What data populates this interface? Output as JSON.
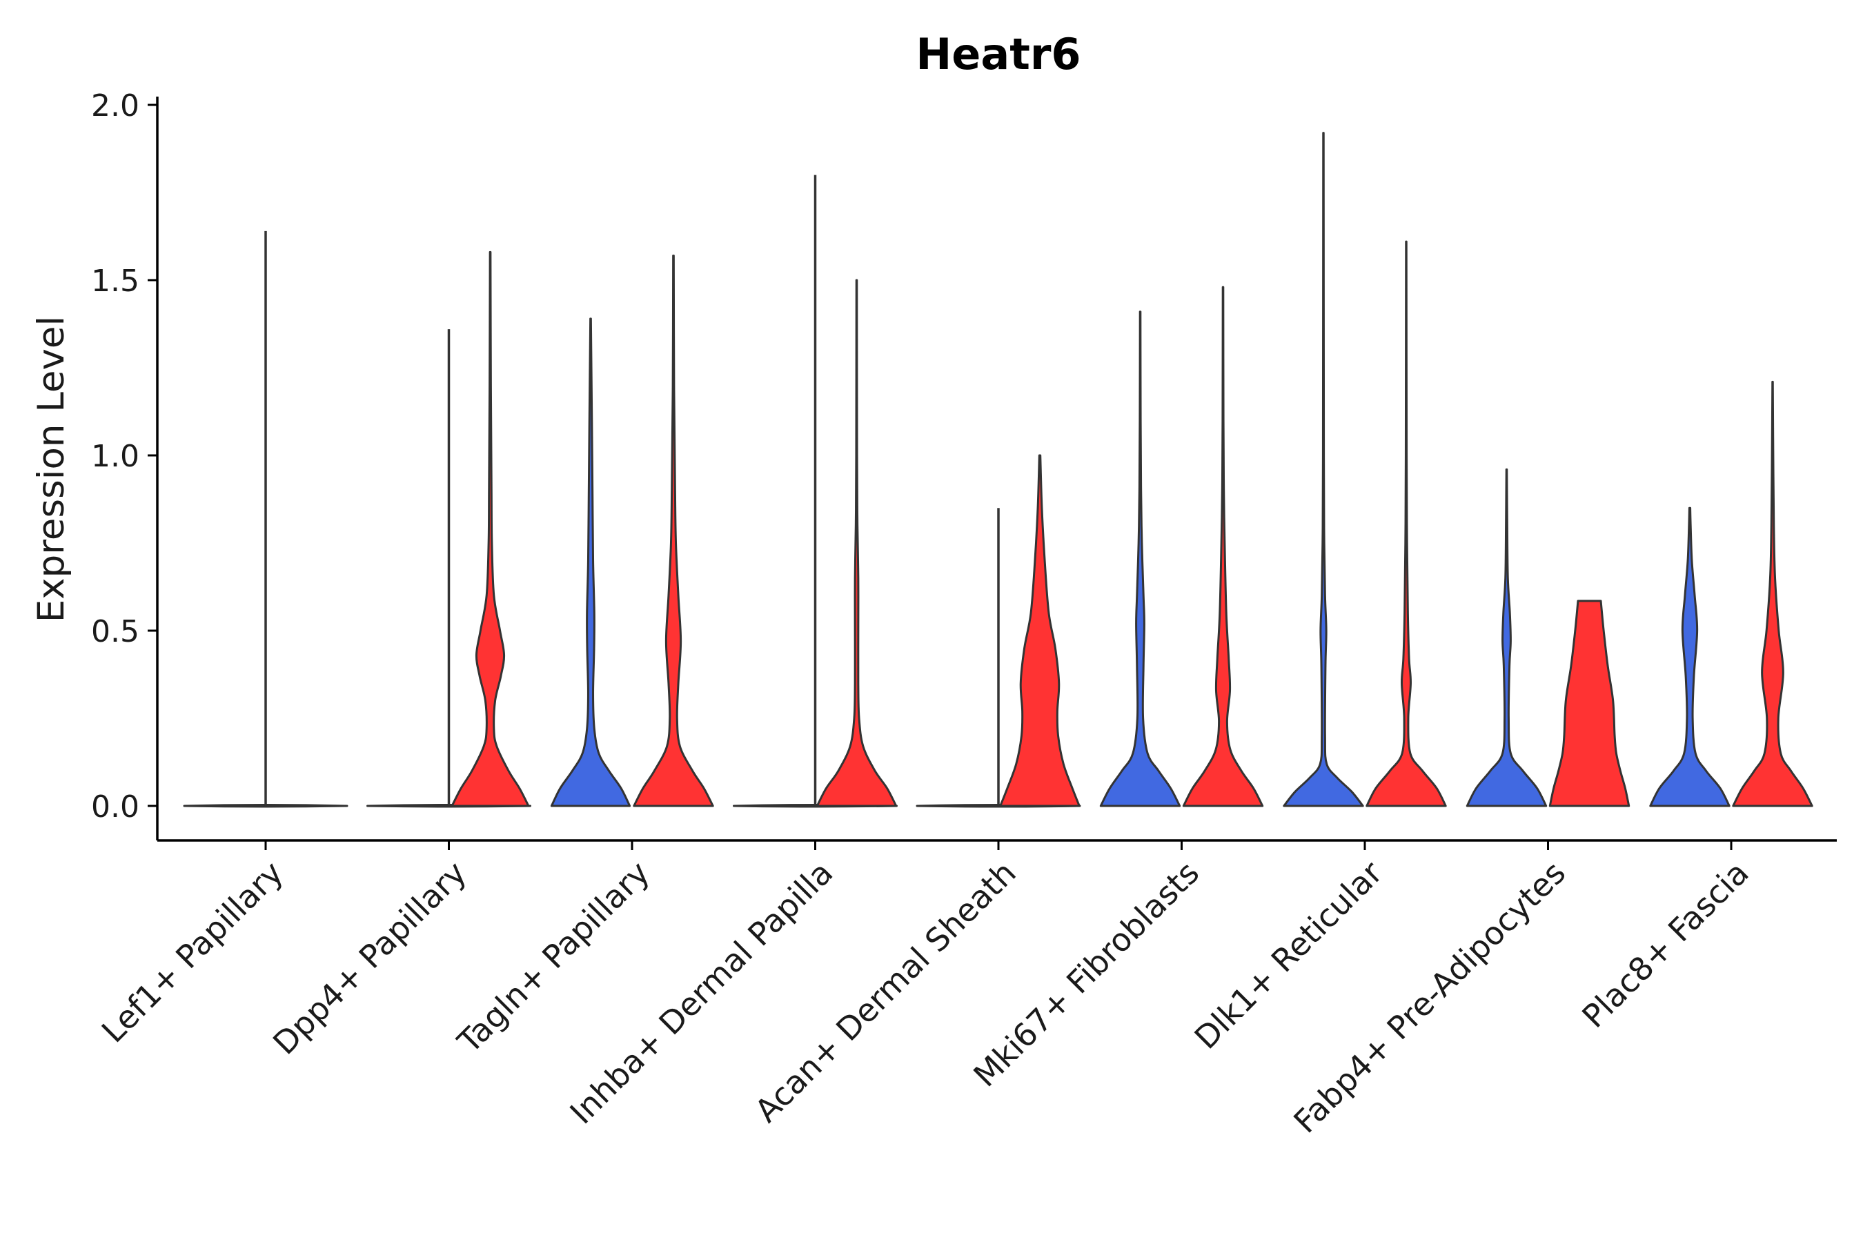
{
  "chart_data": {
    "type": "violin",
    "title": "Heatr6",
    "xlabel": "",
    "ylabel": "Expression Level",
    "ylim": [
      -0.1,
      2.0
    ],
    "yticks": [
      {
        "value": 0.0,
        "label": "0.0"
      },
      {
        "value": 0.5,
        "label": "0.5"
      },
      {
        "value": 1.0,
        "label": "1.0"
      },
      {
        "value": 1.5,
        "label": "1.5"
      },
      {
        "value": 2.0,
        "label": "2.0"
      }
    ],
    "categories": [
      "Lef1+ Papillary",
      "Dpp4+ Papillary",
      "Tagln+ Papillary",
      "Inhba+ Dermal Papilla",
      "Acan+ Dermal Sheath",
      "Mki67+ Fibroblasts",
      "Dlk1+ Reticular",
      "Fabp4+ Pre-Adipocytes",
      "Plac8+ Fascia"
    ],
    "groups": [
      {
        "name": "group-1",
        "color": "#4169E1"
      },
      {
        "name": "group-2",
        "color": "#FF3333"
      }
    ],
    "violins": [
      {
        "category": 0,
        "group": 0,
        "max": 1.64,
        "shape": "flat"
      },
      {
        "category": 1,
        "group": 0,
        "max": 1.36,
        "shape": "flat"
      },
      {
        "category": 1,
        "group": 1,
        "max": 1.58,
        "shape": [
          [
            0,
            0.94
          ],
          [
            0.05,
            0.72
          ],
          [
            0.1,
            0.45
          ],
          [
            0.17,
            0.16
          ],
          [
            0.22,
            0.09
          ],
          [
            0.3,
            0.12
          ],
          [
            0.37,
            0.26
          ],
          [
            0.43,
            0.34
          ],
          [
            0.5,
            0.24
          ],
          [
            0.6,
            0.09
          ],
          [
            0.75,
            0.04
          ],
          [
            0.9,
            0.03
          ],
          [
            1.2,
            0.015
          ],
          [
            1.58,
            0.006
          ]
        ]
      },
      {
        "category": 2,
        "group": 0,
        "max": 1.39,
        "shape": [
          [
            0,
            0.96
          ],
          [
            0.05,
            0.75
          ],
          [
            0.1,
            0.45
          ],
          [
            0.15,
            0.2
          ],
          [
            0.22,
            0.09
          ],
          [
            0.32,
            0.06
          ],
          [
            0.45,
            0.085
          ],
          [
            0.55,
            0.09
          ],
          [
            0.7,
            0.06
          ],
          [
            0.9,
            0.045
          ],
          [
            1.1,
            0.03
          ],
          [
            1.39,
            0.006
          ]
        ]
      },
      {
        "category": 2,
        "group": 1,
        "max": 1.57,
        "shape": [
          [
            0,
            0.97
          ],
          [
            0.05,
            0.75
          ],
          [
            0.1,
            0.47
          ],
          [
            0.17,
            0.16
          ],
          [
            0.25,
            0.09
          ],
          [
            0.35,
            0.12
          ],
          [
            0.47,
            0.18
          ],
          [
            0.6,
            0.12
          ],
          [
            0.75,
            0.06
          ],
          [
            0.9,
            0.04
          ],
          [
            1.2,
            0.015
          ],
          [
            1.57,
            0.006
          ]
        ]
      },
      {
        "category": 3,
        "group": 0,
        "max": 1.8,
        "shape": "flat"
      },
      {
        "category": 3,
        "group": 1,
        "max": 1.5,
        "shape": [
          [
            0,
            0.97
          ],
          [
            0.05,
            0.75
          ],
          [
            0.1,
            0.45
          ],
          [
            0.17,
            0.16
          ],
          [
            0.25,
            0.06
          ],
          [
            0.35,
            0.04
          ],
          [
            0.5,
            0.04
          ],
          [
            0.65,
            0.04
          ],
          [
            0.8,
            0.02
          ],
          [
            1.0,
            0.01
          ],
          [
            1.5,
            0.005
          ]
        ]
      },
      {
        "category": 4,
        "group": 0,
        "max": 0.85,
        "shape": "flat"
      },
      {
        "category": 4,
        "group": 1,
        "max": 1.0,
        "shape": [
          [
            0,
            0.97
          ],
          [
            0.05,
            0.8
          ],
          [
            0.12,
            0.58
          ],
          [
            0.2,
            0.45
          ],
          [
            0.27,
            0.43
          ],
          [
            0.35,
            0.47
          ],
          [
            0.45,
            0.38
          ],
          [
            0.55,
            0.22
          ],
          [
            0.7,
            0.12
          ],
          [
            0.85,
            0.05
          ],
          [
            1.0,
            0.012
          ]
        ]
      },
      {
        "category": 5,
        "group": 0,
        "max": 1.41,
        "shape": [
          [
            0,
            0.97
          ],
          [
            0.05,
            0.75
          ],
          [
            0.1,
            0.45
          ],
          [
            0.15,
            0.18
          ],
          [
            0.25,
            0.07
          ],
          [
            0.4,
            0.08
          ],
          [
            0.52,
            0.1
          ],
          [
            0.6,
            0.08
          ],
          [
            0.75,
            0.04
          ],
          [
            0.9,
            0.02
          ],
          [
            1.1,
            0.01
          ],
          [
            1.41,
            0.005
          ]
        ]
      },
      {
        "category": 5,
        "group": 1,
        "max": 1.48,
        "shape": [
          [
            0,
            0.97
          ],
          [
            0.05,
            0.75
          ],
          [
            0.1,
            0.45
          ],
          [
            0.16,
            0.18
          ],
          [
            0.24,
            0.1
          ],
          [
            0.33,
            0.17
          ],
          [
            0.42,
            0.14
          ],
          [
            0.55,
            0.08
          ],
          [
            0.75,
            0.04
          ],
          [
            0.9,
            0.02
          ],
          [
            1.1,
            0.01
          ],
          [
            1.48,
            0.005
          ]
        ]
      },
      {
        "category": 6,
        "group": 0,
        "max": 1.92,
        "shape": [
          [
            0,
            0.97
          ],
          [
            0.04,
            0.7
          ],
          [
            0.08,
            0.34
          ],
          [
            0.12,
            0.08
          ],
          [
            0.2,
            0.04
          ],
          [
            0.4,
            0.05
          ],
          [
            0.5,
            0.07
          ],
          [
            0.6,
            0.04
          ],
          [
            0.75,
            0.02
          ],
          [
            1.0,
            0.01
          ],
          [
            1.92,
            0.004
          ]
        ]
      },
      {
        "category": 6,
        "group": 1,
        "max": 1.61,
        "shape": [
          [
            0,
            0.97
          ],
          [
            0.05,
            0.75
          ],
          [
            0.1,
            0.4
          ],
          [
            0.15,
            0.1
          ],
          [
            0.25,
            0.05
          ],
          [
            0.35,
            0.11
          ],
          [
            0.42,
            0.07
          ],
          [
            0.55,
            0.04
          ],
          [
            0.75,
            0.02
          ],
          [
            1.0,
            0.01
          ],
          [
            1.61,
            0.004
          ]
        ]
      },
      {
        "category": 7,
        "group": 0,
        "max": 0.96,
        "shape": [
          [
            0,
            0.97
          ],
          [
            0.05,
            0.75
          ],
          [
            0.1,
            0.4
          ],
          [
            0.15,
            0.1
          ],
          [
            0.25,
            0.05
          ],
          [
            0.4,
            0.07
          ],
          [
            0.47,
            0.1
          ],
          [
            0.55,
            0.08
          ],
          [
            0.65,
            0.03
          ],
          [
            0.8,
            0.015
          ],
          [
            0.96,
            0.005
          ]
        ]
      },
      {
        "category": 7,
        "group": 1,
        "max": 0.585,
        "shape": [
          [
            0,
            0.97
          ],
          [
            0.05,
            0.88
          ],
          [
            0.1,
            0.76
          ],
          [
            0.15,
            0.66
          ],
          [
            0.2,
            0.62
          ],
          [
            0.3,
            0.58
          ],
          [
            0.4,
            0.45
          ],
          [
            0.5,
            0.35
          ],
          [
            0.56,
            0.3
          ],
          [
            0.585,
            0.28
          ]
        ]
      },
      {
        "category": 8,
        "group": 0,
        "max": 0.85,
        "shape": [
          [
            0,
            0.97
          ],
          [
            0.05,
            0.75
          ],
          [
            0.1,
            0.4
          ],
          [
            0.15,
            0.14
          ],
          [
            0.25,
            0.07
          ],
          [
            0.37,
            0.1
          ],
          [
            0.5,
            0.18
          ],
          [
            0.6,
            0.12
          ],
          [
            0.7,
            0.05
          ],
          [
            0.8,
            0.02
          ],
          [
            0.85,
            0.01
          ]
        ]
      },
      {
        "category": 8,
        "group": 1,
        "max": 1.21,
        "shape": [
          [
            0,
            0.97
          ],
          [
            0.05,
            0.75
          ],
          [
            0.1,
            0.45
          ],
          [
            0.15,
            0.2
          ],
          [
            0.25,
            0.14
          ],
          [
            0.38,
            0.26
          ],
          [
            0.5,
            0.15
          ],
          [
            0.65,
            0.06
          ],
          [
            0.8,
            0.03
          ],
          [
            1.0,
            0.015
          ],
          [
            1.21,
            0.004
          ]
        ]
      }
    ]
  }
}
